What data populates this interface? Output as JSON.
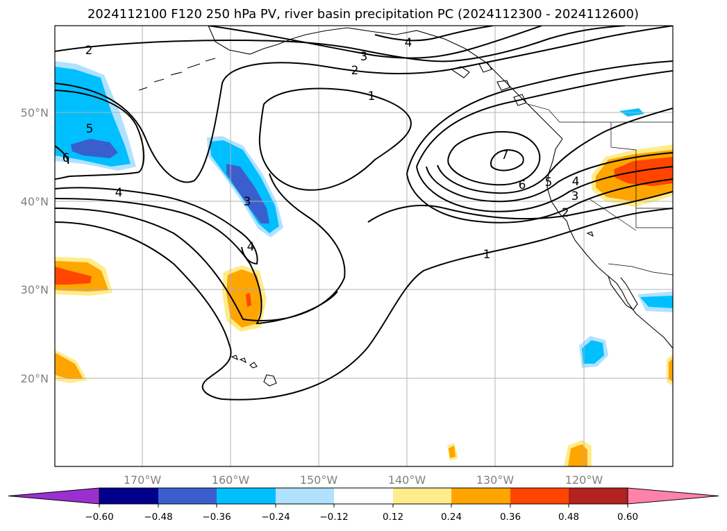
{
  "title": "2024112100 F120 250 hPa PV, river basin precipitation PC (2024112300 - 2024112600)",
  "map": {
    "lon_ticks": [
      "170°W",
      "160°W",
      "150°W",
      "140°W",
      "130°W",
      "120°W"
    ],
    "lat_ticks": [
      "50°N",
      "40°N",
      "30°N",
      "20°N"
    ],
    "grid": true
  },
  "contour_labels": [
    "2",
    "3",
    "4",
    "2",
    "1",
    "5",
    "6",
    "4",
    "3",
    "4",
    "7",
    "6",
    "5",
    "4",
    "3",
    "2",
    "1"
  ],
  "colorbar": {
    "ticks": [
      "−0.60",
      "−0.48",
      "−0.36",
      "−0.24",
      "−0.12",
      "0.12",
      "0.24",
      "0.36",
      "0.48",
      "0.60"
    ],
    "colors": [
      "#9b30d0",
      "#00008b",
      "#3a5fcd",
      "#00bfff",
      "#b0e2ff",
      "#ffffff",
      "#ffec8b",
      "#ffa500",
      "#ff4500",
      "#b22222",
      "#ff82ab"
    ]
  },
  "shading_colors": {
    "neg_light": "#b0e2ff",
    "neg_mid": "#00bfff",
    "neg_strong": "#3a5fcd",
    "pos_light": "#ffec8b",
    "pos_mid": "#ffa500",
    "pos_strong": "#ff4500"
  }
}
